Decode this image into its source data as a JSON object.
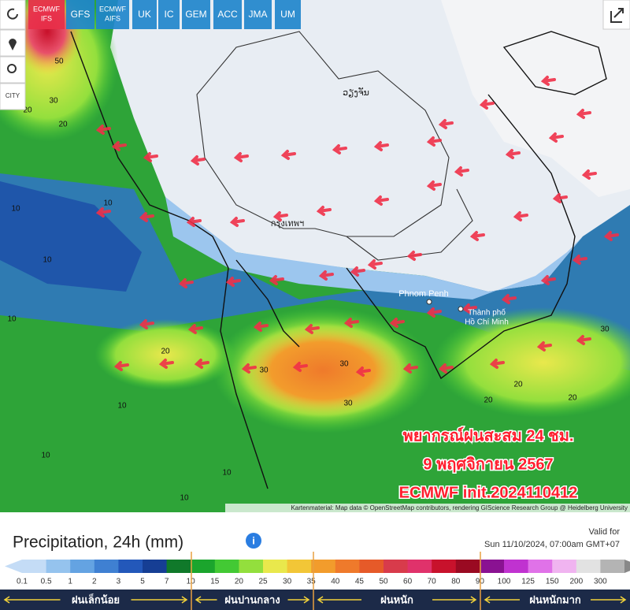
{
  "toolbar": {
    "models": [
      [
        "ECMWF",
        "IFS"
      ],
      [
        "GFS"
      ],
      [
        "ECMWF",
        "AIFS"
      ],
      [
        "UK"
      ],
      [
        "IC"
      ],
      [
        "GEM"
      ],
      [
        "ACC"
      ],
      [
        "JMA"
      ],
      [
        "UM"
      ]
    ],
    "city": "CITY"
  },
  "map": {
    "places": {
      "vientiane": "ວຽງຈັນ",
      "bangkok": "กรุงเทพฯ",
      "phnom_penh": "Phnom Penh",
      "hcmc": [
        "Thành phố",
        "Hồ Chí Minh"
      ]
    },
    "contour_labels": [
      50,
      30,
      20,
      20,
      10,
      10,
      10,
      10,
      20,
      10,
      30,
      30,
      30,
      20,
      20,
      30,
      20,
      10,
      10,
      10
    ],
    "attribution": "Kartenmaterial: Map data © OpenStreetMap contributors, rendering GIScience Research Group @ Heidelberg University"
  },
  "overlay": {
    "line1": "พยากรณ์ฝนสะสม 24 ชม.",
    "line2": "9 พฤศจิกายน 2567",
    "line3": "ECMWF init.2024110412"
  },
  "legend": {
    "title": "Precipitation, 24h (mm)",
    "valid_label": "Valid for",
    "valid_time": "Sun 11/10/2024, 07:00am GMT+07",
    "scale_labels": [
      0.1,
      0.5,
      1,
      2,
      3,
      5,
      7,
      10,
      15,
      20,
      25,
      30,
      35,
      40,
      45,
      50,
      60,
      70,
      80,
      90,
      100,
      125,
      150,
      200,
      300
    ],
    "scale_colors": [
      "#c4dcf6",
      "#95c3ee",
      "#64a3e2",
      "#3f80d2",
      "#2358ba",
      "#163e94",
      "#10792a",
      "#1ba52d",
      "#43c934",
      "#93df3d",
      "#e9e84c",
      "#f2c637",
      "#f29c2c",
      "#ef7a2b",
      "#e65a29",
      "#d83b4b",
      "#e0326b",
      "#c8122c",
      "#9a0a22",
      "#8a1292",
      "#c032d0",
      "#e072e8",
      "#f0b4f0",
      "#e2e2e2",
      "#b4b4b4"
    ],
    "categories": [
      "ฝนเล็กน้อย",
      "ฝนปานกลาง",
      "ฝนหนัก",
      "ฝนหนักมาก"
    ]
  }
}
